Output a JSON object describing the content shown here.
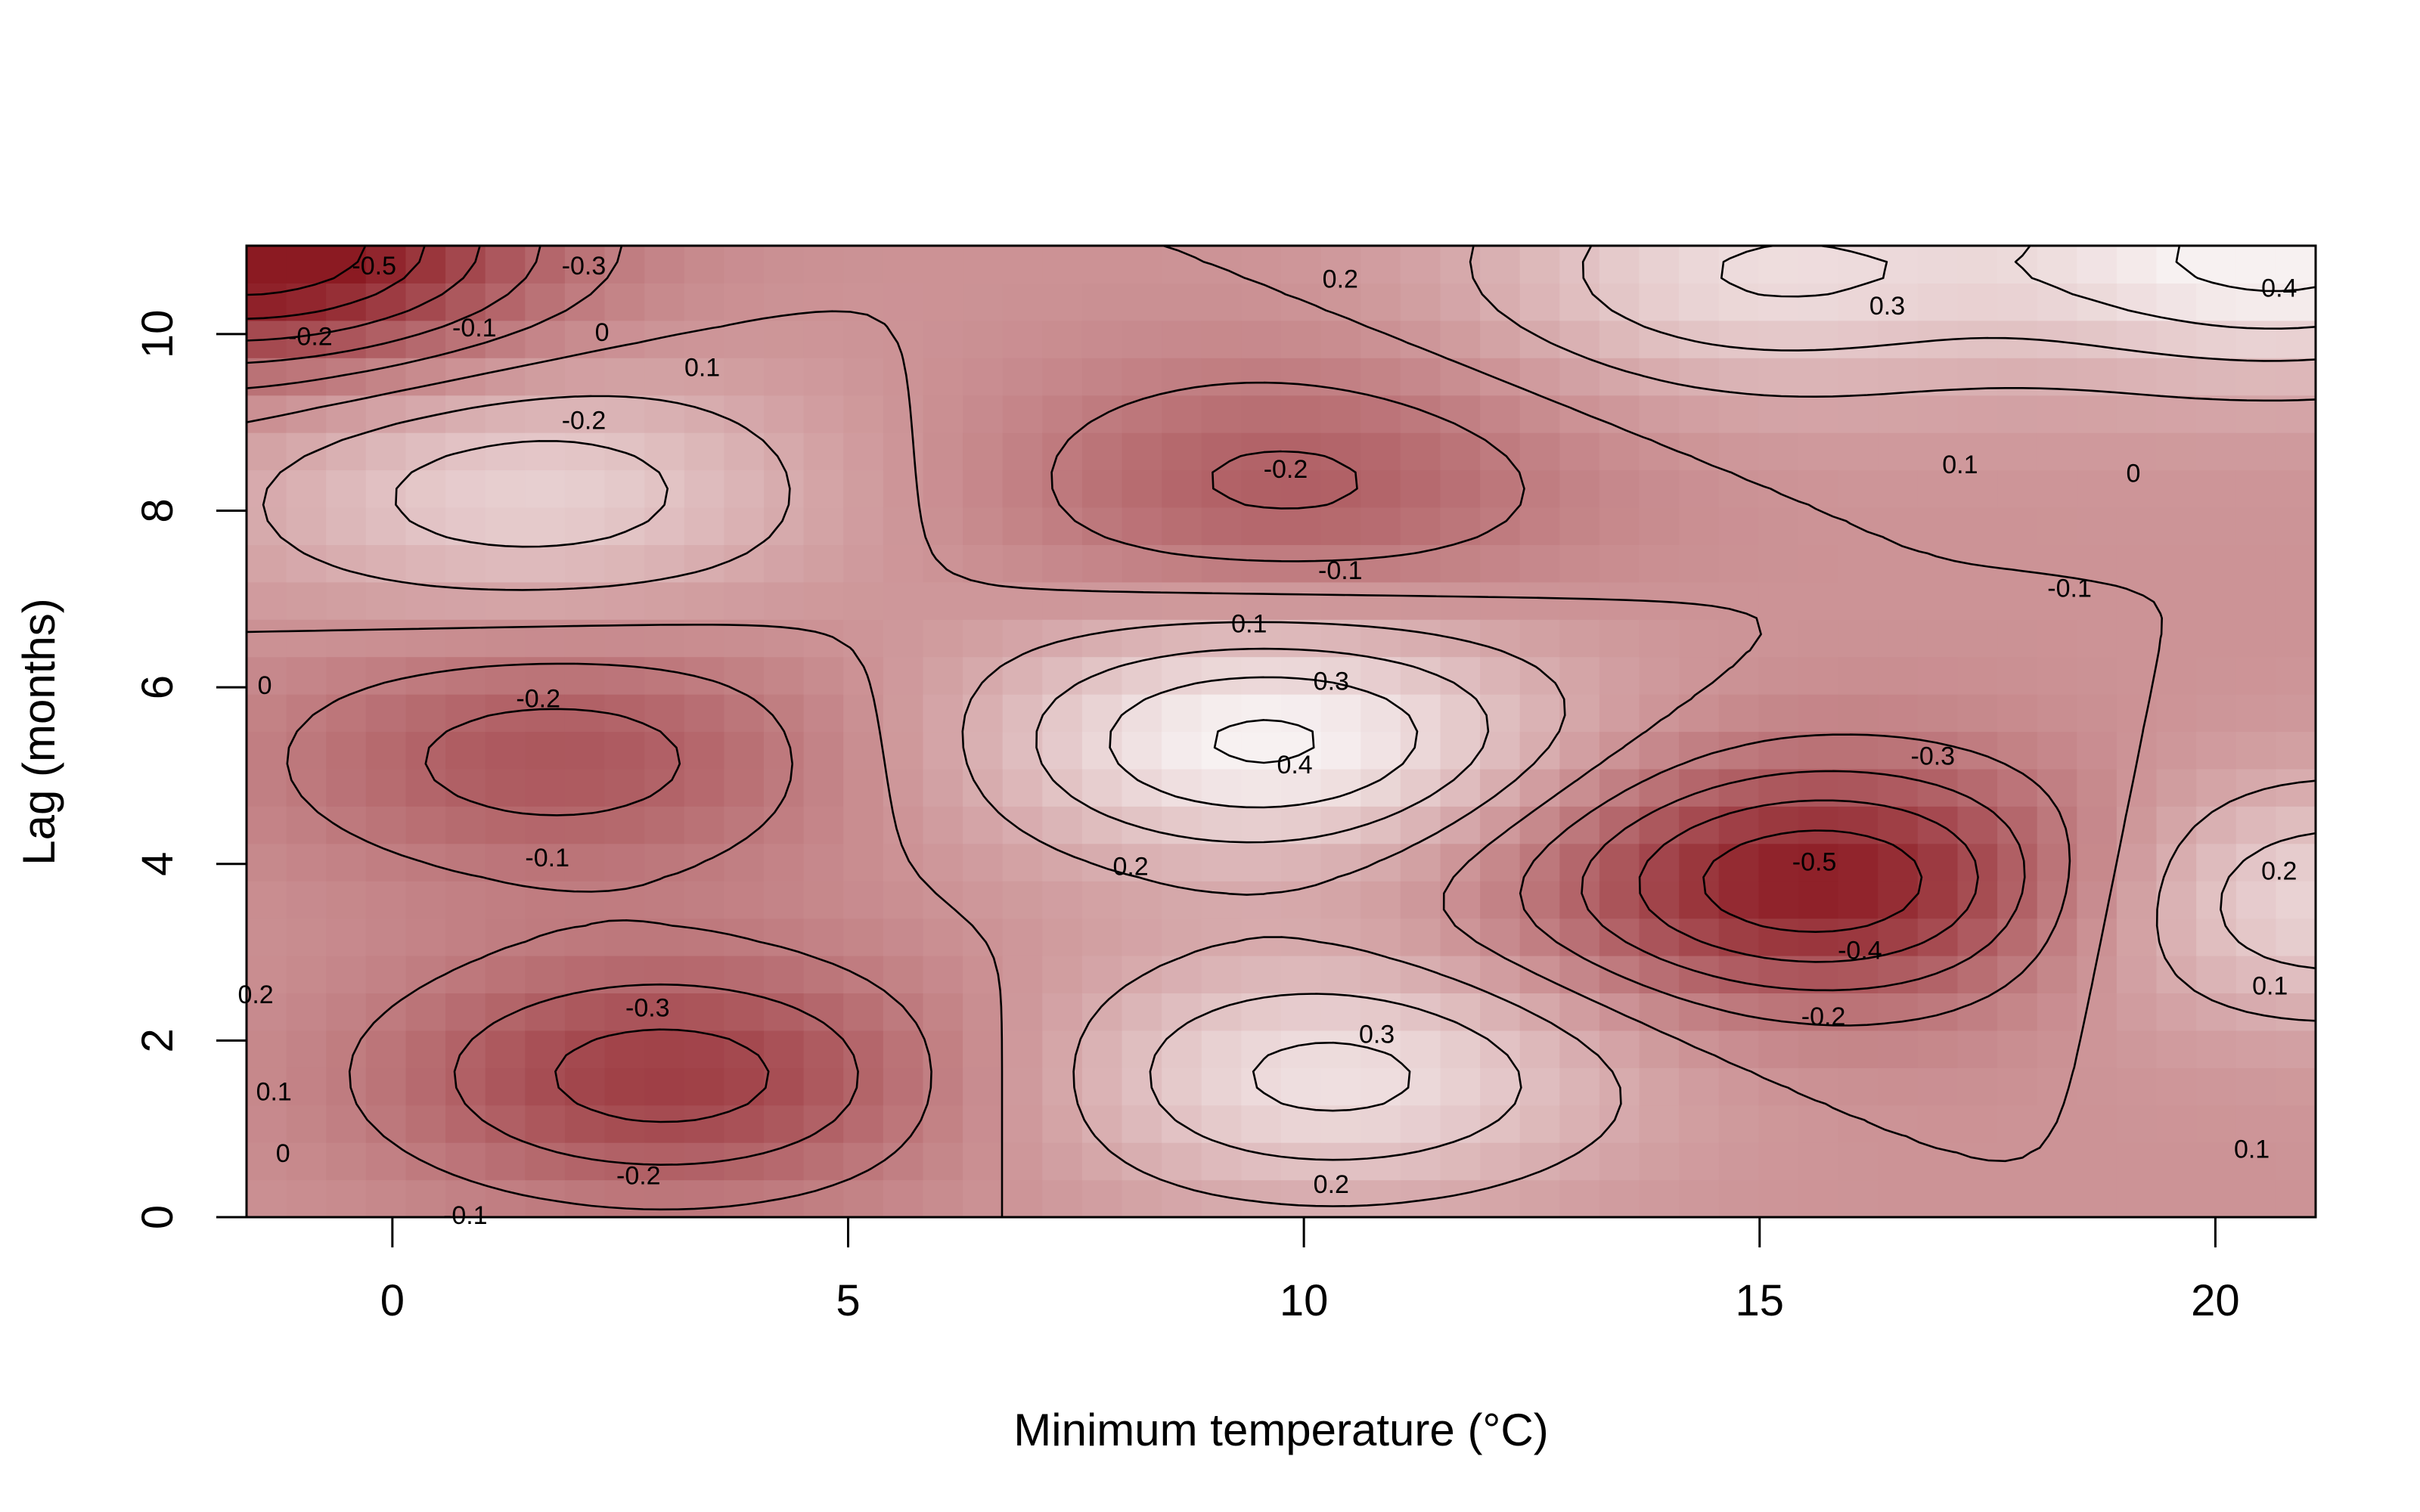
{
  "chart_data": {
    "type": "heatmap",
    "subtype": "filled contour with contour lines and labels",
    "title": "",
    "xlabel": "Minimum temperature (°C)",
    "ylabel": "Lag (months)",
    "xlim": [
      -1.6,
      21.1
    ],
    "ylim": [
      0,
      11
    ],
    "xticks": [
      0,
      5,
      10,
      15,
      20
    ],
    "yticks": [
      0,
      2,
      4,
      6,
      8,
      10
    ],
    "grid": false,
    "legend": "none",
    "colors": {
      "max_negative": "#8b1a22",
      "zero": "#cc9396",
      "max_positive": "#f7f1f1"
    },
    "color_range": [
      -0.5,
      0.4
    ],
    "features": [
      {
        "kind": "min",
        "x": 15.7,
        "y": 3.8,
        "value": -0.5
      },
      {
        "kind": "min",
        "x": 3.0,
        "y": 1.6,
        "value": -0.35
      },
      {
        "kind": "min",
        "x": 1.8,
        "y": 5.2,
        "value": -0.25
      },
      {
        "kind": "min",
        "x": 9.8,
        "y": 8.3,
        "value": -0.22
      },
      {
        "kind": "min",
        "x": -1.6,
        "y": 11.0,
        "value": -0.6
      },
      {
        "kind": "max",
        "x": 9.6,
        "y": 5.4,
        "value": 0.42
      },
      {
        "kind": "max",
        "x": 10.3,
        "y": 1.6,
        "value": 0.33
      },
      {
        "kind": "max",
        "x": 1.5,
        "y": 8.2,
        "value": 0.26
      },
      {
        "kind": "max",
        "x": 21.1,
        "y": 3.6,
        "value": 0.3
      },
      {
        "kind": "max",
        "x": 20.8,
        "y": 10.9,
        "value": 0.43
      },
      {
        "kind": "max",
        "x": 15.0,
        "y": 10.7,
        "value": 0.3
      }
    ],
    "contour_labels": [
      {
        "text": "-0.5",
        "x": -0.2,
        "y": 10.75
      },
      {
        "text": "-0.3",
        "x": 2.1,
        "y": 10.75
      },
      {
        "text": "-0.2",
        "x": -0.9,
        "y": 9.95
      },
      {
        "text": "-0.1",
        "x": 0.9,
        "y": 10.05
      },
      {
        "text": "0",
        "x": 2.3,
        "y": 10.0
      },
      {
        "text": "0.1",
        "x": 3.4,
        "y": 9.6
      },
      {
        "text": "-0.2",
        "x": 2.1,
        "y": 9.0
      },
      {
        "text": "0.2",
        "x": 10.4,
        "y": 10.6
      },
      {
        "text": "0.3",
        "x": 16.4,
        "y": 10.3
      },
      {
        "text": "0.4",
        "x": 20.7,
        "y": 10.5
      },
      {
        "text": "0.1",
        "x": 17.2,
        "y": 8.5
      },
      {
        "text": "0",
        "x": 19.1,
        "y": 8.4
      },
      {
        "text": "-0.2",
        "x": 9.8,
        "y": 8.45
      },
      {
        "text": "-0.1",
        "x": 10.4,
        "y": 7.3
      },
      {
        "text": "-0.1",
        "x": 18.4,
        "y": 7.1
      },
      {
        "text": "0.1",
        "x": 9.4,
        "y": 6.7
      },
      {
        "text": "0.3",
        "x": 10.3,
        "y": 6.05
      },
      {
        "text": "0.4",
        "x": 9.9,
        "y": 5.1
      },
      {
        "text": "-0.2",
        "x": 1.6,
        "y": 5.85
      },
      {
        "text": "0",
        "x": -1.4,
        "y": 6.0
      },
      {
        "text": "-0.1",
        "x": 1.7,
        "y": 4.05
      },
      {
        "text": "0.2",
        "x": 8.1,
        "y": 3.95
      },
      {
        "text": "-0.3",
        "x": 16.9,
        "y": 5.2
      },
      {
        "text": "-0.5",
        "x": 15.6,
        "y": 4.0
      },
      {
        "text": "-0.4",
        "x": 16.1,
        "y": 3.0
      },
      {
        "text": "-0.2",
        "x": 15.7,
        "y": 2.25
      },
      {
        "text": "-0.3",
        "x": 2.8,
        "y": 2.35
      },
      {
        "text": "0.3",
        "x": 10.8,
        "y": 2.05
      },
      {
        "text": "-0.2",
        "x": 2.7,
        "y": 0.45
      },
      {
        "text": "0.2",
        "x": 10.3,
        "y": 0.35
      },
      {
        "text": "-0.1",
        "x": 0.8,
        "y": 0.0
      },
      {
        "text": "0.2",
        "x": -1.5,
        "y": 2.5
      },
      {
        "text": "0.1",
        "x": -1.3,
        "y": 1.4
      },
      {
        "text": "0",
        "x": -1.2,
        "y": 0.7
      },
      {
        "text": "0.2",
        "x": 20.7,
        "y": 3.9
      },
      {
        "text": "0.1",
        "x": 20.6,
        "y": 2.6
      },
      {
        "text": "0.1",
        "x": 20.4,
        "y": 0.75
      }
    ]
  }
}
